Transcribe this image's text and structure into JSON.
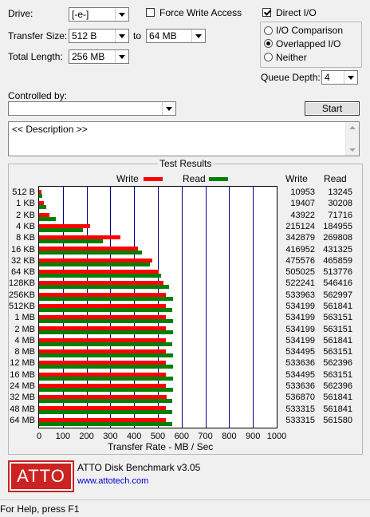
{
  "controls": {
    "drive_label": "Drive:",
    "drive_value": "[-e-]",
    "force_write_label": "Force Write Access",
    "force_write_checked": false,
    "direct_io_label": "Direct I/O",
    "direct_io_checked": true,
    "transfer_size_label": "Transfer Size:",
    "transfer_size_from": "512 B",
    "to_label": "to",
    "transfer_size_to": "64 MB",
    "total_length_label": "Total Length:",
    "total_length_value": "256 MB",
    "radio_io_comparison": "I/O Comparison",
    "radio_overlapped_io": "Overlapped I/O",
    "radio_neither": "Neither",
    "selected_mode": "Overlapped I/O",
    "queue_depth_label": "Queue Depth:",
    "queue_depth_value": "4",
    "controlled_by_label": "Controlled by:",
    "controlled_by_value": "",
    "start_button": "Start",
    "description": "<< Description >>"
  },
  "results": {
    "group_title": "Test Results",
    "legend_write": "Write",
    "legend_read": "Read",
    "col_write": "Write",
    "col_read": "Read",
    "write_color": "#ff0000",
    "read_color": "#008000",
    "grid_color": "#00008b"
  },
  "chart_data": {
    "type": "bar",
    "orientation": "horizontal",
    "categories": [
      "512 B",
      "1 KB",
      "2 KB",
      "4 KB",
      "8 KB",
      "16 KB",
      "32 KB",
      "64 KB",
      "128KB",
      "256KB",
      "512KB",
      "1 MB",
      "2 MB",
      "4 MB",
      "8 MB",
      "12 MB",
      "16 MB",
      "24 MB",
      "32 MB",
      "48 MB",
      "64 MB"
    ],
    "series": [
      {
        "name": "Write",
        "values": [
          10953,
          19407,
          43922,
          215124,
          342879,
          416952,
          475576,
          505025,
          522241,
          533963,
          534199,
          534199,
          534199,
          534199,
          534495,
          533636,
          534495,
          533636,
          536870,
          533315,
          533315
        ]
      },
      {
        "name": "Read",
        "values": [
          13245,
          30208,
          71716,
          184955,
          269808,
          431325,
          465859,
          513776,
          546416,
          562997,
          561841,
          563151,
          563151,
          561841,
          563151,
          562396,
          563151,
          562396,
          561841,
          561841,
          561580
        ]
      }
    ],
    "xlabel": "Transfer Rate - MB / Sec",
    "xlim": [
      0,
      1000
    ],
    "xticks": [
      0,
      100,
      200,
      300,
      400,
      500,
      600,
      700,
      800,
      900,
      1000
    ],
    "grid": true,
    "legend": "top"
  },
  "footer": {
    "logo_text": "ATTO",
    "product": "ATTO Disk Benchmark v3.05",
    "url": "www.attotech.com",
    "status": "For Help, press F1"
  }
}
